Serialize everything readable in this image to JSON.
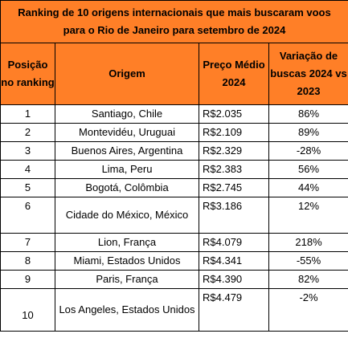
{
  "table": {
    "title": "Ranking de 10 origens internacionais que mais buscaram voos para o Rio de Janeiro para setembro de 2024",
    "header": {
      "position": "Posição no ranking",
      "origin": "Origem",
      "price": "Preço Médio 2024",
      "variation": "Variação de buscas 2024 vs 2023"
    },
    "rows": [
      {
        "position": "1",
        "origin": "Santiago, Chile",
        "price": "R$2.035",
        "variation": "86%"
      },
      {
        "position": "2",
        "origin": "Montevidéu, Uruguai",
        "price": "R$2.109",
        "variation": "89%"
      },
      {
        "position": "3",
        "origin": "Buenos Aires, Argentina",
        "price": "R$2.329",
        "variation": "-28%"
      },
      {
        "position": "4",
        "origin": "Lima, Peru",
        "price": "R$2.383",
        "variation": "56%"
      },
      {
        "position": "5",
        "origin": "Bogotá, Colômbia",
        "price": "R$2.745",
        "variation": "44%"
      },
      {
        "position": "6",
        "origin": "Cidade do México, México",
        "price": "R$3.186",
        "variation": "12%"
      },
      {
        "position": "7",
        "origin": "Lion, França",
        "price": "R$4.079",
        "variation": "218%"
      },
      {
        "position": "8",
        "origin": "Miami, Estados Unidos",
        "price": "R$4.341",
        "variation": "-55%"
      },
      {
        "position": "9",
        "origin": "Paris, França",
        "price": "R$4.390",
        "variation": "82%"
      },
      {
        "position": "10",
        "origin": "Los Angeles, Estados Unidos",
        "price": "R$4.479",
        "variation": "-2%"
      }
    ],
    "colors": {
      "header_background": "#ff7f27",
      "border": "#000000",
      "body_background": "#ffffff"
    }
  }
}
